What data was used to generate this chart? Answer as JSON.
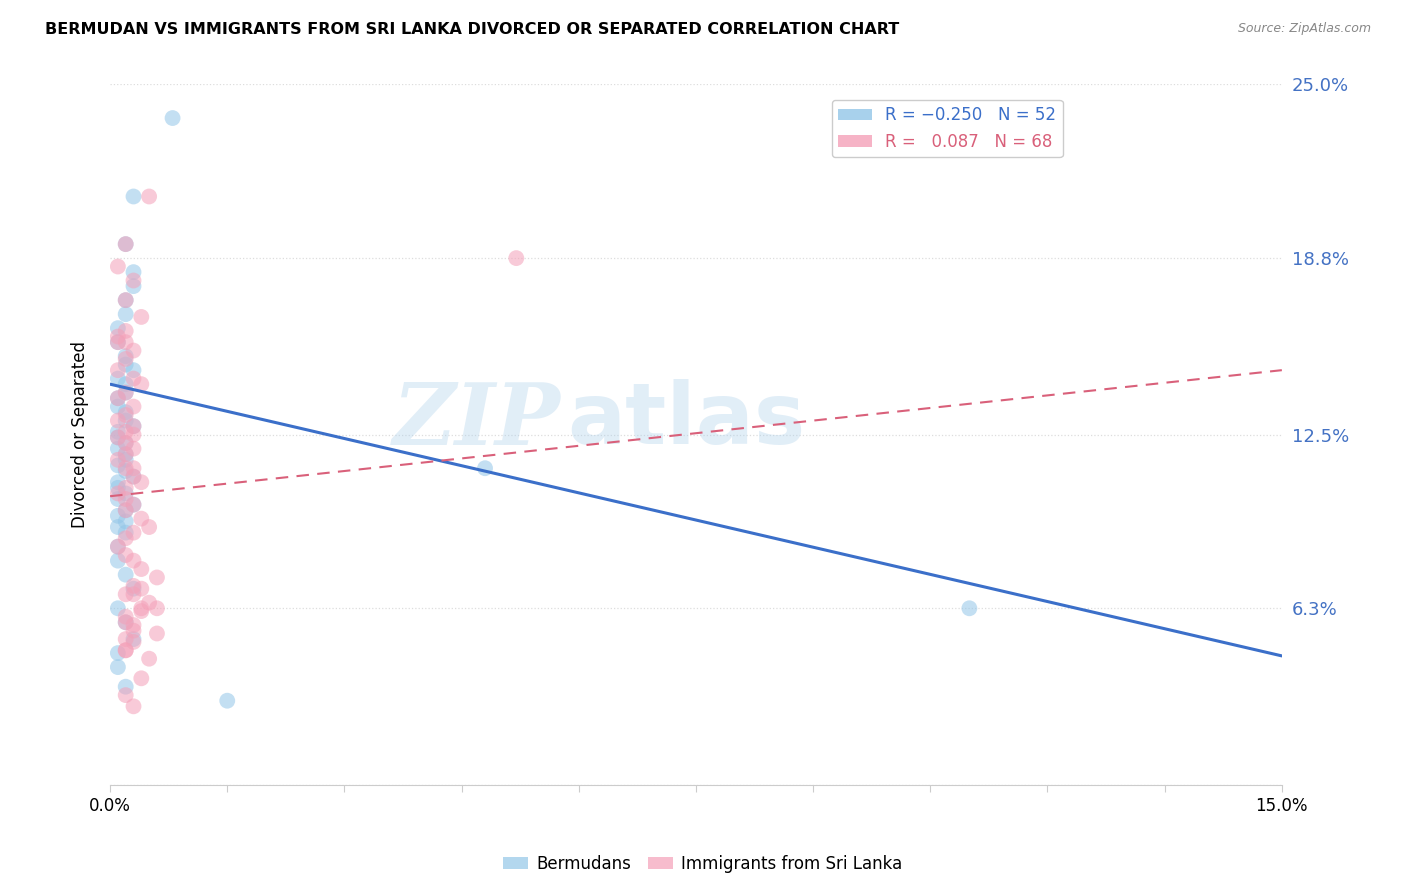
{
  "title": "BERMUDAN VS IMMIGRANTS FROM SRI LANKA DIVORCED OR SEPARATED CORRELATION CHART",
  "source": "Source: ZipAtlas.com",
  "ylabel": "Divorced or Separated",
  "xlim": [
    0.0,
    0.15
  ],
  "ylim": [
    0.0,
    0.25
  ],
  "watermark_part1": "ZIP",
  "watermark_part2": "atlas",
  "blue_color": "#93C6E8",
  "pink_color": "#F4A0B8",
  "blue_line_color": "#3B6FC9",
  "pink_line_color": "#D9607A",
  "scatter_size": 130,
  "scatter_alpha": 0.55,
  "blue_scatter_x": [
    0.008,
    0.003,
    0.002,
    0.003,
    0.003,
    0.002,
    0.002,
    0.001,
    0.001,
    0.002,
    0.002,
    0.003,
    0.001,
    0.002,
    0.002,
    0.001,
    0.001,
    0.002,
    0.002,
    0.003,
    0.001,
    0.001,
    0.002,
    0.001,
    0.002,
    0.002,
    0.001,
    0.002,
    0.003,
    0.001,
    0.001,
    0.002,
    0.001,
    0.003,
    0.002,
    0.001,
    0.002,
    0.001,
    0.002,
    0.001,
    0.001,
    0.002,
    0.003,
    0.001,
    0.002,
    0.003,
    0.001,
    0.001,
    0.002,
    0.11,
    0.048,
    0.015
  ],
  "blue_scatter_y": [
    0.238,
    0.21,
    0.193,
    0.183,
    0.178,
    0.173,
    0.168,
    0.163,
    0.158,
    0.153,
    0.15,
    0.148,
    0.145,
    0.143,
    0.14,
    0.138,
    0.135,
    0.133,
    0.13,
    0.128,
    0.126,
    0.124,
    0.122,
    0.12,
    0.118,
    0.116,
    0.114,
    0.112,
    0.11,
    0.108,
    0.106,
    0.104,
    0.102,
    0.1,
    0.098,
    0.096,
    0.094,
    0.092,
    0.09,
    0.085,
    0.08,
    0.075,
    0.07,
    0.063,
    0.058,
    0.052,
    0.047,
    0.042,
    0.035,
    0.063,
    0.113,
    0.03
  ],
  "pink_scatter_x": [
    0.005,
    0.002,
    0.001,
    0.003,
    0.002,
    0.004,
    0.002,
    0.001,
    0.003,
    0.002,
    0.001,
    0.003,
    0.004,
    0.002,
    0.001,
    0.003,
    0.002,
    0.001,
    0.003,
    0.002,
    0.001,
    0.002,
    0.003,
    0.002,
    0.001,
    0.002,
    0.003,
    0.004,
    0.002,
    0.001,
    0.002,
    0.003,
    0.002,
    0.004,
    0.005,
    0.003,
    0.002,
    0.001,
    0.002,
    0.003,
    0.004,
    0.006,
    0.003,
    0.002,
    0.005,
    0.004,
    0.002,
    0.003,
    0.006,
    0.003,
    0.002,
    0.004,
    0.003,
    0.002,
    0.001,
    0.003,
    0.004,
    0.002,
    0.006,
    0.003,
    0.002,
    0.052,
    0.003,
    0.002,
    0.005,
    0.004,
    0.002,
    0.003
  ],
  "pink_scatter_y": [
    0.21,
    0.193,
    0.185,
    0.18,
    0.173,
    0.167,
    0.162,
    0.158,
    0.155,
    0.152,
    0.148,
    0.145,
    0.143,
    0.14,
    0.138,
    0.135,
    0.132,
    0.13,
    0.128,
    0.126,
    0.124,
    0.122,
    0.12,
    0.118,
    0.116,
    0.113,
    0.11,
    0.108,
    0.106,
    0.104,
    0.102,
    0.1,
    0.098,
    0.095,
    0.092,
    0.09,
    0.088,
    0.085,
    0.082,
    0.08,
    0.077,
    0.074,
    0.071,
    0.068,
    0.065,
    0.062,
    0.06,
    0.057,
    0.054,
    0.051,
    0.048,
    0.063,
    0.125,
    0.158,
    0.16,
    0.068,
    0.07,
    0.058,
    0.063,
    0.055,
    0.052,
    0.188,
    0.113,
    0.048,
    0.045,
    0.038,
    0.032,
    0.028
  ],
  "blue_line_x": [
    0.0,
    0.15
  ],
  "blue_line_y": [
    0.143,
    0.046
  ],
  "pink_line_x": [
    0.0,
    0.15
  ],
  "pink_line_y": [
    0.103,
    0.148
  ],
  "ytick_positions": [
    0.0,
    0.063,
    0.125,
    0.188,
    0.25
  ],
  "ytick_labels": [
    "",
    "6.3%",
    "12.5%",
    "18.8%",
    "25.0%"
  ],
  "xtick_positions": [
    0.0,
    0.015,
    0.03,
    0.045,
    0.06,
    0.075,
    0.09,
    0.105,
    0.12,
    0.135,
    0.15
  ],
  "xtick_labels": [
    "0.0%",
    "",
    "",
    "",
    "",
    "",
    "",
    "",
    "",
    "",
    "15.0%"
  ],
  "grid_color": "#DDDDDD",
  "background_color": "#FFFFFF",
  "ytick_color": "#4472C4"
}
